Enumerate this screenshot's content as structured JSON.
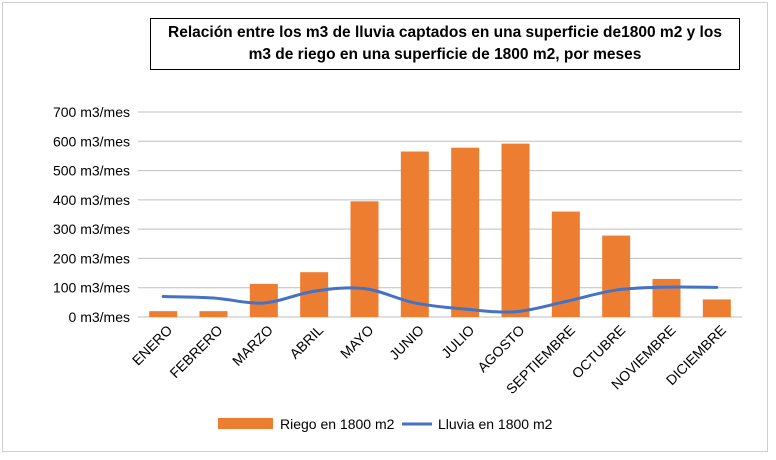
{
  "chart_data": {
    "type": "bar",
    "title": "Relación entre los m3 de lluvia captados en una superficie de1800 m2 y los m3 de riego en una superficie de 1800  m2, por meses",
    "categories": [
      "ENERO",
      "FEBRERO",
      "MARZO",
      "ABRIL",
      "MAYO",
      "JUNIO",
      "JULIO",
      "AGOSTO",
      "SEPTIEMBRE",
      "OCTUBRE",
      "NOVIEMBRE",
      "DICIEMBRE"
    ],
    "series": [
      {
        "name": "Riego en 1800 m2",
        "type": "bar",
        "color": "#ED7D31",
        "values": [
          20,
          20,
          113,
          153,
          395,
          565,
          578,
          592,
          360,
          278,
          130,
          60
        ]
      },
      {
        "name": "Lluvia en 1800 m2",
        "type": "line",
        "color": "#4472C4",
        "values": [
          70,
          65,
          48,
          88,
          97,
          48,
          27,
          18,
          53,
          92,
          102,
          101
        ]
      }
    ],
    "ylim": [
      0,
      700
    ],
    "yticks": [
      "0 m3/mes",
      "100 m3/mes",
      "200 m3/mes",
      "300 m3/mes",
      "400 m3/mes",
      "500 m3/mes",
      "600 m3/mes",
      "700 m3/mes"
    ],
    "ytick_values": [
      0,
      100,
      200,
      300,
      400,
      500,
      600,
      700
    ],
    "grid": true,
    "legend": "bottom"
  }
}
